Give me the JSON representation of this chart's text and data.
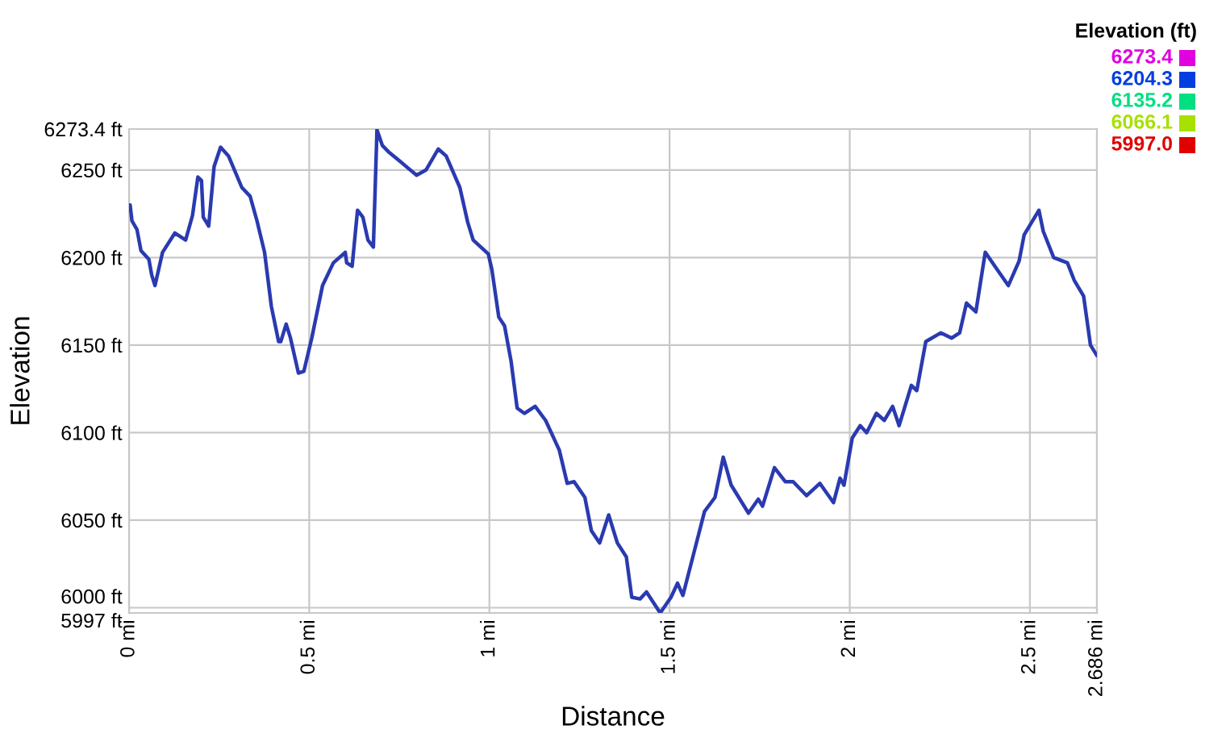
{
  "chart_data": {
    "type": "line",
    "xlabel": "Distance",
    "ylabel": "Elevation",
    "clabel": "Elevation (ft)",
    "x": [
      0.003,
      0.008,
      0.022,
      0.033,
      0.055,
      0.063,
      0.072,
      0.093,
      0.127,
      0.157,
      0.176,
      0.191,
      0.201,
      0.206,
      0.221,
      0.236,
      0.254,
      0.276,
      0.313,
      0.336,
      0.355,
      0.376,
      0.395,
      0.415,
      0.421,
      0.436,
      0.448,
      0.47,
      0.485,
      0.507,
      0.537,
      0.567,
      0.6,
      0.604,
      0.619,
      0.634,
      0.649,
      0.663,
      0.678,
      0.688,
      0.703,
      0.722,
      0.752,
      0.798,
      0.824,
      0.858,
      0.88,
      0.918,
      0.94,
      0.955,
      0.997,
      1.007,
      1.026,
      1.042,
      1.06,
      1.077,
      1.097,
      1.127,
      1.156,
      1.194,
      1.216,
      1.235,
      1.265,
      1.283,
      1.306,
      1.331,
      1.355,
      1.38,
      1.395,
      1.418,
      1.436,
      1.474,
      1.504,
      1.522,
      1.537,
      1.567,
      1.597,
      1.626,
      1.649,
      1.671,
      1.719,
      1.746,
      1.758,
      1.791,
      1.821,
      1.843,
      1.88,
      1.917,
      1.955,
      1.973,
      1.984,
      2.007,
      2.029,
      2.047,
      2.074,
      2.096,
      2.119,
      2.137,
      2.171,
      2.186,
      2.211,
      2.253,
      2.283,
      2.305,
      2.324,
      2.35,
      2.376,
      2.403,
      2.44,
      2.47,
      2.484,
      2.525,
      2.537,
      2.566,
      2.604,
      2.623,
      2.649,
      2.668,
      2.686
    ],
    "values": [
      6230,
      6221,
      6216,
      6204,
      6199,
      6190,
      6184,
      6203,
      6214,
      6210,
      6224,
      6246,
      6244,
      6223,
      6218,
      6252,
      6263,
      6258,
      6240,
      6235,
      6221,
      6203,
      6172,
      6152,
      6152,
      6162,
      6154,
      6134,
      6135,
      6154,
      6184,
      6197,
      6203,
      6197,
      6195,
      6227,
      6223,
      6210,
      6206,
      6273,
      6264,
      6260,
      6255,
      6247,
      6250,
      6262,
      6258,
      6240,
      6220,
      6210,
      6202,
      6193,
      6166,
      6161,
      6141,
      6114,
      6111,
      6115,
      6107,
      6090,
      6071,
      6072,
      6063,
      6044,
      6037,
      6053,
      6037,
      6029,
      6006,
      6005,
      6009,
      5997,
      6006,
      6014,
      6007,
      6031,
      6055,
      6063,
      6086,
      6070,
      6054,
      6062,
      6058,
      6080,
      6072,
      6072,
      6064,
      6071,
      6060,
      6074,
      6070,
      6097,
      6104,
      6100,
      6111,
      6107,
      6115,
      6104,
      6127,
      6124,
      6152,
      6157,
      6154,
      6157,
      6174,
      6169,
      6203,
      6195,
      6184,
      6198,
      6213,
      6227,
      6215,
      6200,
      6197,
      6187,
      6178,
      6150,
      6144
    ],
    "xlim": [
      0,
      2.686
    ],
    "xticks": [
      {
        "value": 0,
        "label": "0 mi"
      },
      {
        "value": 0.5,
        "label": "0.5 mi"
      },
      {
        "value": 1,
        "label": "1 mi"
      },
      {
        "value": 1.5,
        "label": "1.5 mi"
      },
      {
        "value": 2,
        "label": "2 mi"
      },
      {
        "value": 2.5,
        "label": "2.5 mi"
      },
      {
        "value": 2.686,
        "label": "2.686 mi"
      }
    ],
    "ylim": [
      5997.0,
      6273.4
    ],
    "yticks": [
      {
        "value": 5997.0,
        "label": "5997 ft"
      },
      {
        "value": 6000,
        "label": "6000 ft"
      },
      {
        "value": 6050,
        "label": "6050 ft"
      },
      {
        "value": 6100,
        "label": "6100 ft"
      },
      {
        "value": 6150,
        "label": "6150 ft"
      },
      {
        "value": 6200,
        "label": "6200 ft"
      },
      {
        "value": 6250,
        "label": "6250 ft"
      },
      {
        "value": 6273.4,
        "label": "6273.4 ft"
      }
    ],
    "clim": [
      5997.0,
      6273.4
    ],
    "cticks": [
      {
        "value": 6273.4,
        "label": "6273.4"
      },
      {
        "value": 6204.3,
        "label": "6204.3"
      },
      {
        "value": 6135.2,
        "label": "6135.2"
      },
      {
        "value": 6066.1,
        "label": "6066.1"
      },
      {
        "value": 5997.0,
        "label": "5997.0"
      }
    ],
    "grid": true
  }
}
